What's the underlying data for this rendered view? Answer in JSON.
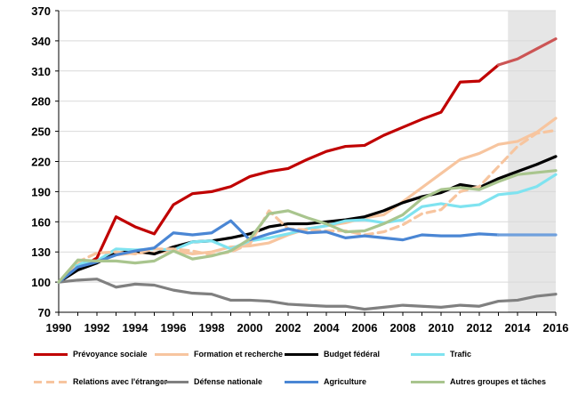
{
  "chart_data": {
    "type": "line",
    "title": "",
    "xlabel": "",
    "ylabel": "",
    "xlim": [
      1990,
      2016
    ],
    "ylim": [
      70,
      370
    ],
    "yticks": [
      70,
      100,
      130,
      160,
      190,
      220,
      250,
      280,
      310,
      340,
      370
    ],
    "xticks": [
      1990,
      1992,
      1994,
      1996,
      1998,
      2000,
      2002,
      2004,
      2006,
      2008,
      2010,
      2012,
      2014,
      2016
    ],
    "grid": "horizontal",
    "forecast_from": 2013.5,
    "forecast_shading": "#e6e6e6",
    "legend_position": "bottom",
    "series": [
      {
        "name": "Prévoyance sociale",
        "color": "#c00000",
        "forecast_color": "#cc5555",
        "style": "solid",
        "x": [
          1990,
          1991,
          1992,
          1993,
          1994,
          1995,
          1996,
          1997,
          1998,
          1999,
          2000,
          2001,
          2002,
          2003,
          2004,
          2005,
          2006,
          2007,
          2008,
          2009,
          2010,
          2011,
          2012,
          2013,
          2014,
          2015,
          2016
        ],
        "values": [
          100,
          113,
          124,
          165,
          155,
          148,
          177,
          188,
          190,
          195,
          205,
          210,
          213,
          222,
          230,
          235,
          236,
          246,
          254,
          262,
          269,
          299,
          300,
          316,
          322,
          332,
          342
        ]
      },
      {
        "name": "Formation et recherche",
        "color": "#f7c59f",
        "style": "solid",
        "x": [
          1990,
          1991,
          1992,
          1993,
          1994,
          1995,
          1996,
          1997,
          1998,
          1999,
          2000,
          2001,
          2002,
          2003,
          2004,
          2005,
          2006,
          2007,
          2008,
          2009,
          2010,
          2011,
          2012,
          2013,
          2014,
          2015,
          2016
        ],
        "values": [
          100,
          114,
          121,
          127,
          129,
          129,
          131,
          128,
          130,
          135,
          136,
          139,
          147,
          153,
          156,
          159,
          164,
          167,
          180,
          194,
          208,
          222,
          228,
          237,
          240,
          249,
          263
        ]
      },
      {
        "name": "Budget fédéral",
        "color": "#000000",
        "style": "solid",
        "x": [
          1990,
          1991,
          1992,
          1993,
          1994,
          1995,
          1996,
          1997,
          1998,
          1999,
          2000,
          2001,
          2002,
          2003,
          2004,
          2005,
          2006,
          2007,
          2008,
          2009,
          2010,
          2011,
          2012,
          2013,
          2014,
          2015,
          2016
        ],
        "values": [
          100,
          112,
          119,
          129,
          131,
          128,
          135,
          140,
          141,
          144,
          148,
          155,
          158,
          158,
          160,
          162,
          165,
          171,
          179,
          185,
          189,
          197,
          194,
          203,
          210,
          217,
          225
        ]
      },
      {
        "name": "Trafic",
        "color": "#7fe3f0",
        "style": "solid",
        "x": [
          1990,
          1991,
          1992,
          1993,
          1994,
          1995,
          1996,
          1997,
          1998,
          1999,
          2000,
          2001,
          2002,
          2003,
          2004,
          2005,
          2006,
          2007,
          2008,
          2009,
          2010,
          2011,
          2012,
          2013,
          2014,
          2015,
          2016
        ],
        "values": [
          100,
          118,
          121,
          133,
          132,
          133,
          132,
          140,
          141,
          133,
          141,
          144,
          148,
          153,
          156,
          161,
          162,
          159,
          162,
          175,
          178,
          175,
          177,
          187,
          189,
          195,
          207
        ]
      },
      {
        "name": "Relations avec l'étranger",
        "color": "#f7c59f",
        "style": "dashed",
        "x": [
          1990,
          1991,
          1992,
          1993,
          1994,
          1995,
          1996,
          1997,
          1998,
          1999,
          2000,
          2001,
          2002,
          2003,
          2004,
          2005,
          2006,
          2007,
          2008,
          2009,
          2010,
          2011,
          2012,
          2013,
          2014,
          2015,
          2016
        ],
        "values": [
          100,
          120,
          129,
          130,
          128,
          133,
          133,
          131,
          127,
          130,
          138,
          171,
          153,
          152,
          151,
          151,
          147,
          150,
          157,
          168,
          172,
          190,
          195,
          215,
          235,
          248,
          251
        ]
      },
      {
        "name": "Défense nationale",
        "color": "#808080",
        "style": "solid",
        "x": [
          1990,
          1991,
          1992,
          1993,
          1994,
          1995,
          1996,
          1997,
          1998,
          1999,
          2000,
          2001,
          2002,
          2003,
          2004,
          2005,
          2006,
          2007,
          2008,
          2009,
          2010,
          2011,
          2012,
          2013,
          2014,
          2015,
          2016
        ],
        "values": [
          100,
          102,
          103,
          95,
          98,
          97,
          92,
          89,
          88,
          82,
          82,
          81,
          78,
          77,
          76,
          76,
          73,
          75,
          77,
          76,
          75,
          77,
          76,
          81,
          82,
          86,
          88
        ]
      },
      {
        "name": "Agriculture",
        "color": "#4a86d4",
        "forecast_color": "#6fa0dd",
        "style": "solid",
        "x": [
          1990,
          1991,
          1992,
          1993,
          1994,
          1995,
          1996,
          1997,
          1998,
          1999,
          2000,
          2001,
          2002,
          2003,
          2004,
          2005,
          2006,
          2007,
          2008,
          2009,
          2010,
          2011,
          2012,
          2013,
          2014,
          2015,
          2016
        ],
        "values": [
          100,
          115,
          120,
          127,
          131,
          134,
          149,
          147,
          149,
          161,
          142,
          148,
          153,
          149,
          150,
          144,
          146,
          144,
          142,
          147,
          146,
          146,
          148,
          147,
          147,
          147,
          147
        ]
      },
      {
        "name": "Autres groupes et tâches",
        "color": "#a9c58e",
        "style": "solid",
        "x": [
          1990,
          1991,
          1992,
          1993,
          1994,
          1995,
          1996,
          1997,
          1998,
          1999,
          2000,
          2001,
          2002,
          2003,
          2004,
          2005,
          2006,
          2007,
          2008,
          2009,
          2010,
          2011,
          2012,
          2013,
          2014,
          2015,
          2016
        ],
        "values": [
          100,
          122,
          121,
          121,
          119,
          121,
          131,
          123,
          126,
          131,
          143,
          168,
          171,
          164,
          158,
          150,
          151,
          158,
          167,
          183,
          192,
          194,
          192,
          200,
          207,
          209,
          211
        ]
      }
    ]
  }
}
